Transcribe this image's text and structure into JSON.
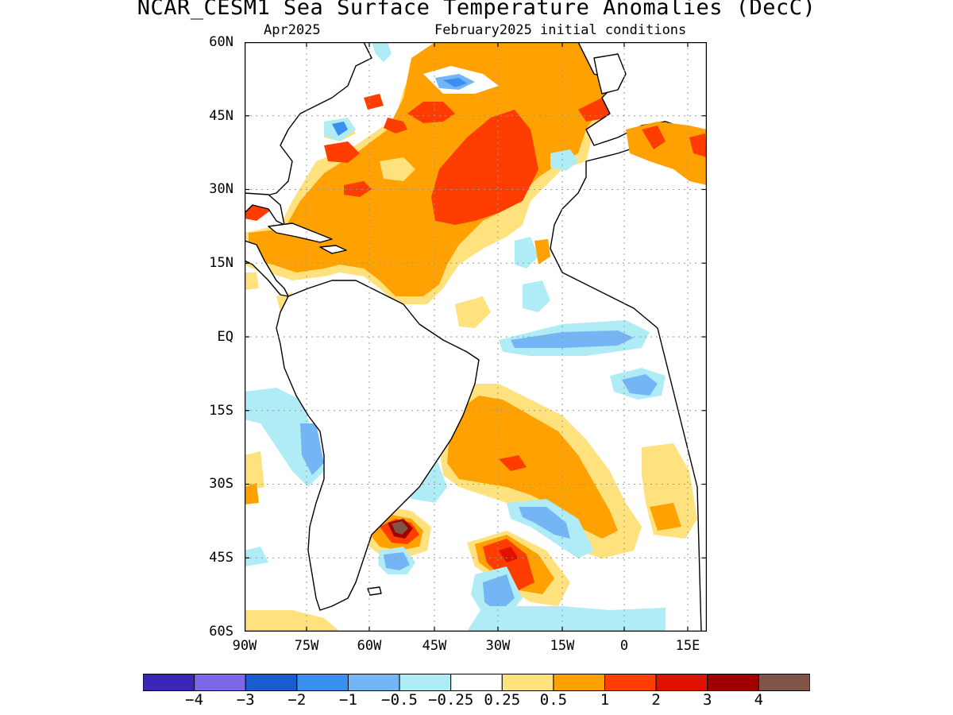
{
  "title": "NCAR_CESM1 Sea Surface Temperature Anomalies (DecC)",
  "valid_month": "Apr2025",
  "initial_conditions": "February2025 initial conditions",
  "lat_labels": [
    "60N",
    "45N",
    "30N",
    "15N",
    "EQ",
    "15S",
    "30S",
    "45S",
    "60S"
  ],
  "lon_labels": [
    "90W",
    "75W",
    "60W",
    "45W",
    "30W",
    "15W",
    "0",
    "15E"
  ],
  "colorbar": {
    "colors": [
      "#3a27b8",
      "#7e66e8",
      "#1a5bcf",
      "#3b8fef",
      "#74b6f5",
      "#b0ecf5",
      "#ffffff",
      "#ffe17e",
      "#ffa100",
      "#ff3d00",
      "#df1200",
      "#a00000",
      "#7e5546"
    ],
    "labels": [
      "−4",
      "−3",
      "−2",
      "−1",
      "−0.5",
      "−0.25",
      "0.25",
      "0.5",
      "1",
      "2",
      "3",
      "4"
    ]
  },
  "colors": {
    "land_outline": "#000000",
    "grid": "#888888",
    "warm_050": "#ffe17e",
    "warm_100": "#ffa100",
    "warm_200": "#ff3d00",
    "warm_300": "#df1200",
    "warm_400": "#a00000",
    "warm_max": "#7e5546",
    "cool_025": "#b0ecf5",
    "cool_050": "#74b6f5",
    "cool_100": "#3b8fef"
  }
}
